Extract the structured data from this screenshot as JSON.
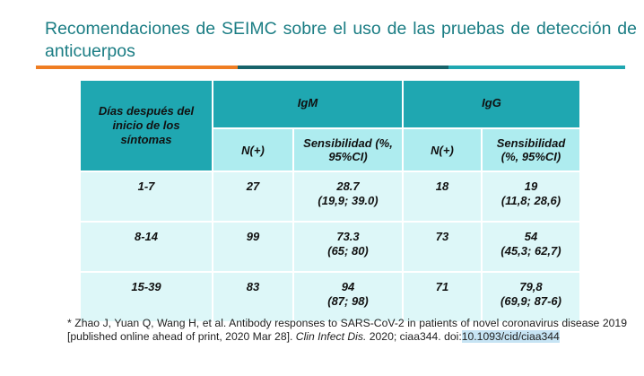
{
  "header": {
    "title": "Recomendaciones de SEIMC sobre el uso de las pruebas de detección de anticuerpos"
  },
  "table": {
    "corner": "Días después del inicio de los síntomas",
    "groups": [
      "IgM",
      "IgG"
    ],
    "subheaders": [
      "N(+)",
      "Sensibilidad (%, 95%CI)",
      "N(+)",
      "Sensibilidad (%, 95%CI)"
    ],
    "rows": [
      {
        "days": "1-7",
        "igm_n": "27",
        "igm_sens": "28.7",
        "igm_ci": "(19,9; 39.0)",
        "igg_n": "18",
        "igg_sens": "19",
        "igg_ci": "(11,8; 28,6)"
      },
      {
        "days": "8-14",
        "igm_n": "99",
        "igm_sens": "73.3",
        "igm_ci": "(65; 80)",
        "igg_n": "73",
        "igg_sens": "54",
        "igg_ci": "(45,3; 62,7)"
      },
      {
        "days": "15-39",
        "igm_n": "83",
        "igm_sens": "94",
        "igm_ci": "(87; 98)",
        "igg_n": "71",
        "igg_sens": "79,8",
        "igg_ci": "(69,9; 87-6)"
      }
    ]
  },
  "footnote": {
    "marker": "*",
    "text": "Zhao J, Yuan Q, Wang H, et al. Antibody responses to SARS-CoV-2 in patients of novel coronavirus disease 2019 [published online ahead of print, 2020 Mar 28].",
    "journal": "Clin Infect Dis.",
    "rest": "2020; ciaa344. doi:",
    "doi": "10.1093/cid/ciaa344"
  }
}
